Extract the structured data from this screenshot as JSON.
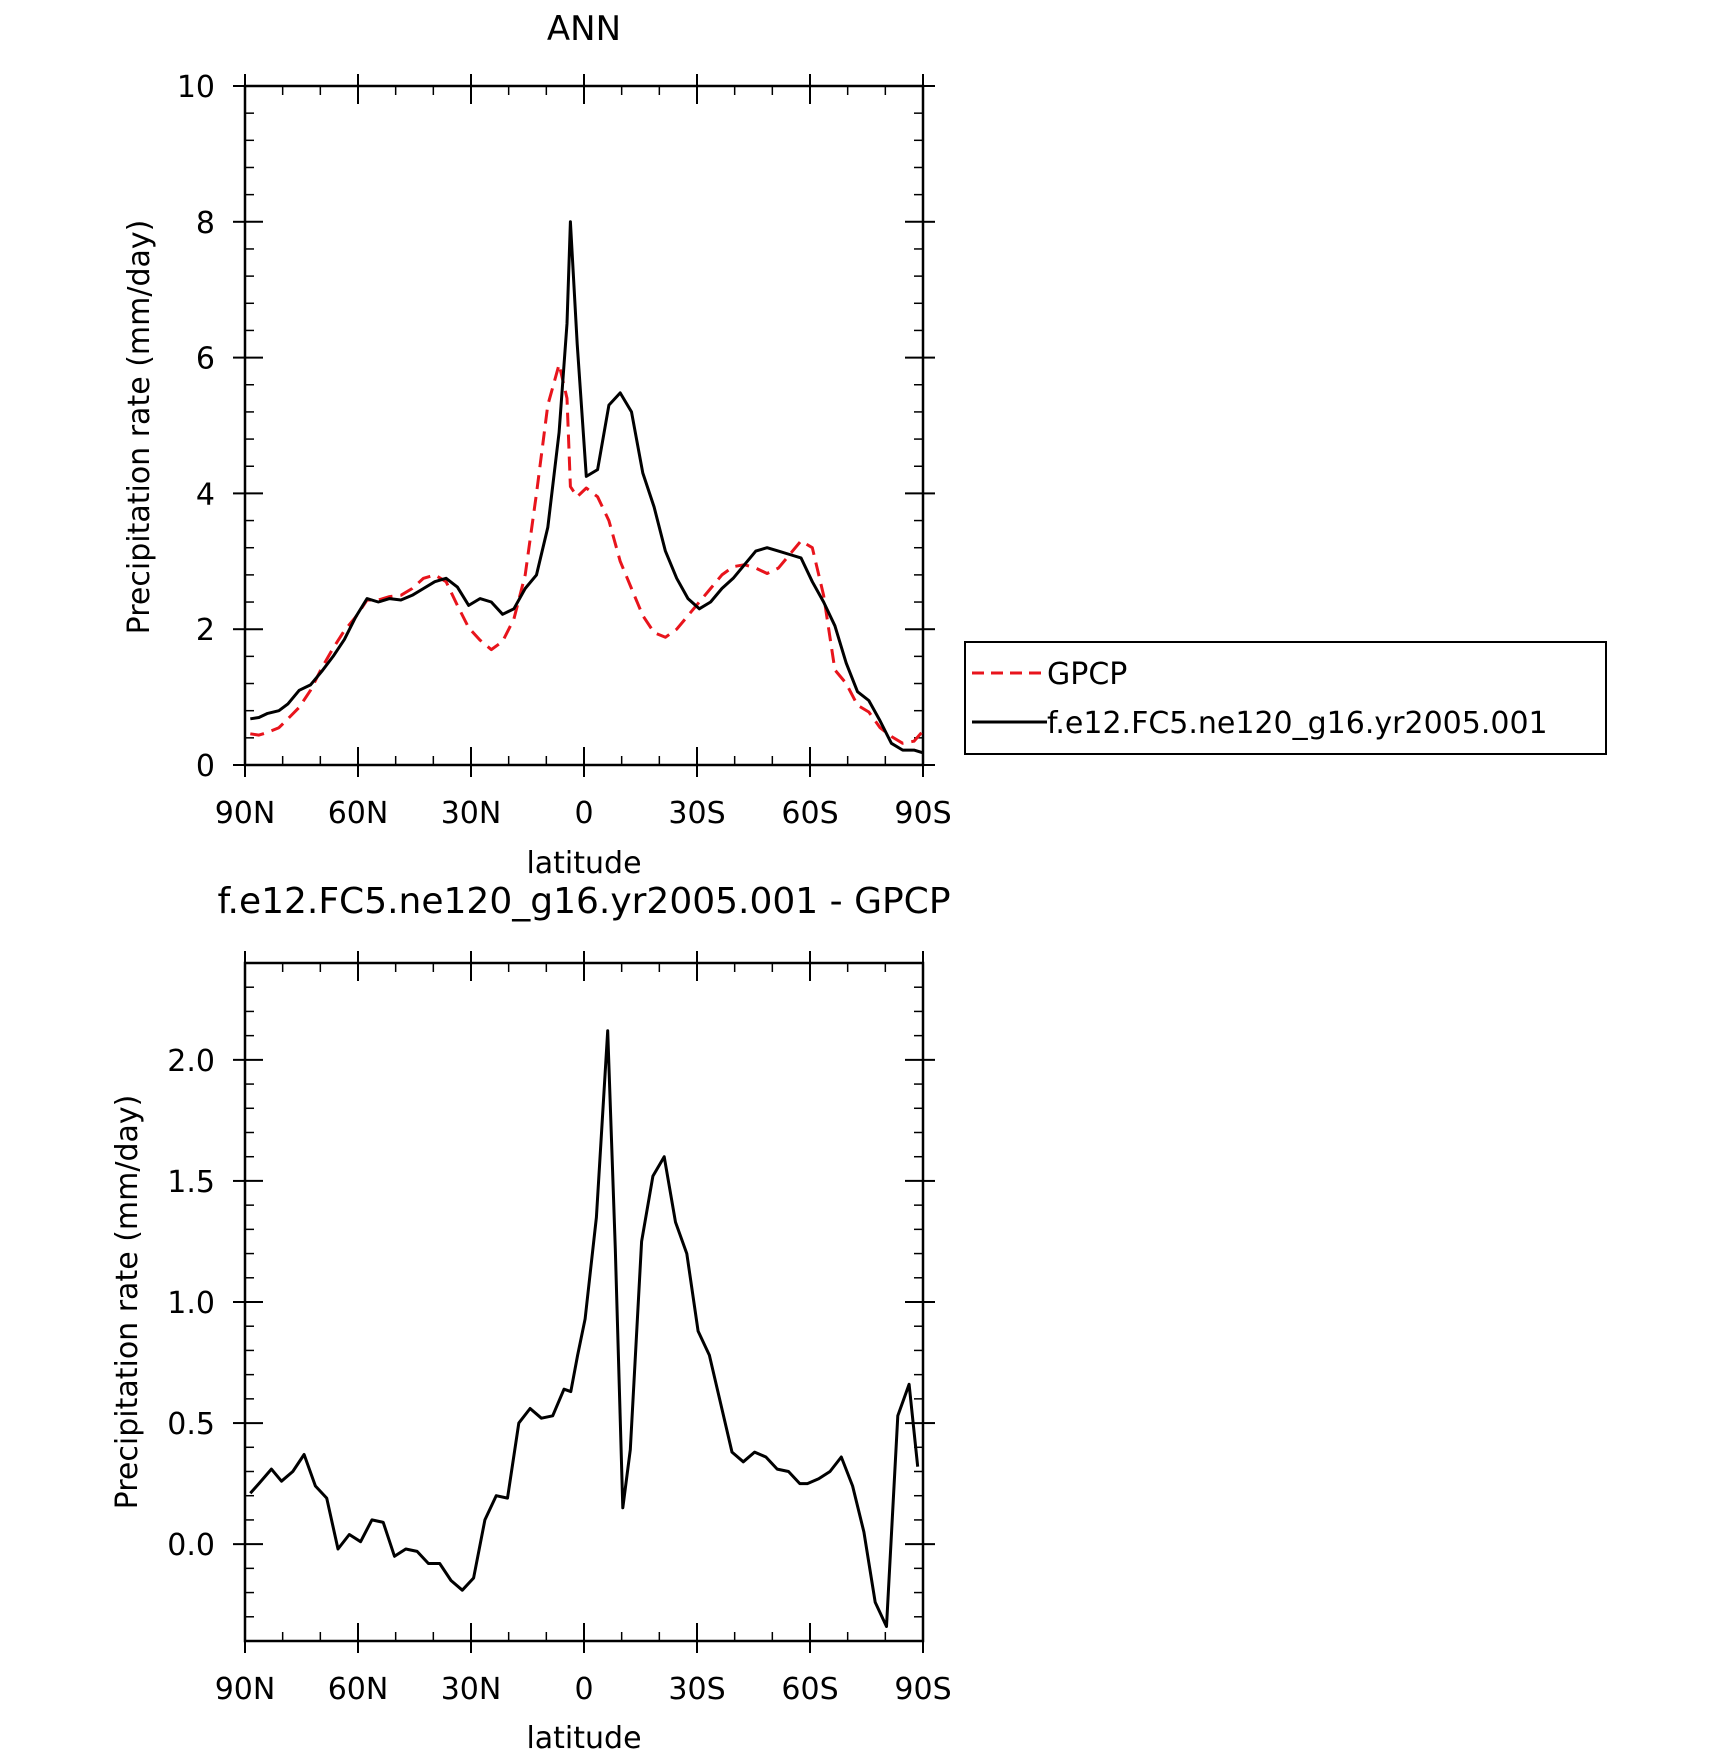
{
  "chart_data": [
    {
      "type": "line",
      "title": "ANN",
      "xlabel": "latitude",
      "ylabel": "Precipitation rate (mm/day)",
      "ylim": [
        0,
        10
      ],
      "xlim": [
        90,
        -90
      ],
      "x_ticks": [
        90,
        60,
        30,
        0,
        -30,
        -60,
        -90
      ],
      "x_tick_labels": [
        "90N",
        "60N",
        "30N",
        "0",
        "30S",
        "60S",
        "90S"
      ],
      "y_ticks": [
        0,
        2,
        4,
        6,
        8,
        10
      ],
      "y_tick_labels": [
        "0",
        "2",
        "4",
        "6",
        "8",
        "10"
      ],
      "legend_position": "right",
      "grid": false,
      "series": [
        {
          "name": "GPCP",
          "color": "#e8141c",
          "dash": "dashed",
          "x": [
            88.6,
            86.3,
            84.0,
            81.0,
            78.6,
            75.6,
            72.6,
            69.6,
            66.6,
            63.6,
            60.6,
            57.6,
            54.6,
            51.6,
            48.6,
            45.6,
            42.6,
            39.6,
            36.6,
            33.6,
            30.6,
            27.6,
            24.6,
            21.6,
            18.6,
            15.6,
            12.6,
            9.6,
            6.6,
            4.5,
            3.6,
            1.8,
            -0.6,
            -3.6,
            -6.6,
            -9.6,
            -12.6,
            -15.6,
            -18.6,
            -21.6,
            -24.6,
            -27.6,
            -30.6,
            -33.6,
            -36.6,
            -39.6,
            -42.6,
            -45.6,
            -48.6,
            -51.6,
            -54.6,
            -57.6,
            -60.6,
            -63.6,
            -66.6,
            -69.6,
            -72.6,
            -75.6,
            -78.6,
            -81.6,
            -84.6,
            -87.6,
            -90.0
          ],
          "y": [
            0.46,
            0.44,
            0.48,
            0.55,
            0.68,
            0.85,
            1.1,
            1.43,
            1.72,
            1.98,
            2.18,
            2.43,
            2.43,
            2.48,
            2.5,
            2.6,
            2.75,
            2.8,
            2.7,
            2.35,
            2.02,
            1.84,
            1.7,
            1.82,
            2.15,
            2.8,
            4.0,
            5.3,
            5.9,
            5.4,
            4.1,
            3.95,
            4.08,
            3.95,
            3.6,
            3.0,
            2.6,
            2.2,
            1.95,
            1.88,
            2.0,
            2.2,
            2.4,
            2.6,
            2.8,
            2.92,
            2.95,
            2.9,
            2.82,
            2.9,
            3.1,
            3.3,
            3.2,
            2.5,
            1.4,
            1.2,
            0.88,
            0.78,
            0.55,
            0.42,
            0.32,
            0.35,
            0.5
          ]
        },
        {
          "name": "f.e12.FC5.ne120_g16.yr2005.001",
          "color": "#000000",
          "dash": "solid",
          "x": [
            88.6,
            86.3,
            84.0,
            81.0,
            78.6,
            75.6,
            72.6,
            69.6,
            66.6,
            63.6,
            60.6,
            57.6,
            54.6,
            51.6,
            48.6,
            45.6,
            42.6,
            39.6,
            36.6,
            33.6,
            30.6,
            27.6,
            24.6,
            21.6,
            18.6,
            15.6,
            12.6,
            9.6,
            6.6,
            4.5,
            3.6,
            1.8,
            -0.6,
            -3.6,
            -6.6,
            -9.6,
            -12.6,
            -15.6,
            -18.6,
            -21.6,
            -24.6,
            -27.6,
            -30.6,
            -33.6,
            -36.6,
            -39.6,
            -42.6,
            -45.6,
            -48.6,
            -51.6,
            -54.6,
            -57.6,
            -60.6,
            -63.6,
            -66.6,
            -69.6,
            -72.6,
            -75.6,
            -78.6,
            -81.6,
            -84.6,
            -87.6,
            -90.0
          ],
          "y": [
            0.68,
            0.7,
            0.76,
            0.8,
            0.9,
            1.1,
            1.18,
            1.38,
            1.6,
            1.85,
            2.18,
            2.45,
            2.4,
            2.45,
            2.43,
            2.5,
            2.6,
            2.7,
            2.75,
            2.62,
            2.35,
            2.45,
            2.4,
            2.22,
            2.3,
            2.6,
            2.8,
            3.5,
            4.9,
            6.5,
            8.0,
            6.2,
            4.25,
            4.35,
            5.3,
            5.48,
            5.2,
            4.3,
            3.8,
            3.15,
            2.75,
            2.45,
            2.3,
            2.4,
            2.6,
            2.75,
            2.95,
            3.15,
            3.2,
            3.15,
            3.1,
            3.05,
            2.7,
            2.4,
            2.05,
            1.5,
            1.08,
            0.95,
            0.65,
            0.32,
            0.22,
            0.22,
            0.18
          ]
        }
      ]
    },
    {
      "type": "line",
      "title": "f.e12.FC5.ne120_g16.yr2005.001 - GPCP",
      "xlabel": "latitude",
      "ylabel": "Precipitation rate (mm/day)",
      "ylim": [
        -0.4,
        2.4
      ],
      "xlim": [
        90,
        -90
      ],
      "x_ticks": [
        90,
        60,
        30,
        0,
        -30,
        -60,
        -90
      ],
      "x_tick_labels": [
        "90N",
        "60N",
        "30N",
        "0",
        "30S",
        "60S",
        "90S"
      ],
      "y_ticks": [
        0.0,
        0.5,
        1.0,
        1.5,
        2.0
      ],
      "y_tick_labels": [
        "0.0",
        "0.5",
        "1.0",
        "1.5",
        "2.0"
      ],
      "grid": false,
      "series": [
        {
          "color": "#000000",
          "dash": "solid",
          "x": [
            88.6,
            86.3,
            83.0,
            80.3,
            77.3,
            74.3,
            71.3,
            68.3,
            65.3,
            62.3,
            59.3,
            56.3,
            53.3,
            50.3,
            47.3,
            44.3,
            41.3,
            38.3,
            35.3,
            32.3,
            29.3,
            26.3,
            23.3,
            20.3,
            17.3,
            14.3,
            11.3,
            8.3,
            5.3,
            3.5,
            1.7,
            -0.3,
            -3.3,
            -6.3,
            -8.3,
            -10.3,
            -12.3,
            -15.3,
            -18.3,
            -21.3,
            -24.3,
            -27.3,
            -30.3,
            -33.3,
            -36.3,
            -39.3,
            -42.3,
            -45.3,
            -48.3,
            -51.3,
            -54.3,
            -57.3,
            -59.3,
            -62.3,
            -65.3,
            -68.3,
            -71.3,
            -74.3,
            -77.3,
            -80.3,
            -83.3,
            -86.3,
            -88.6
          ],
          "y": [
            0.21,
            0.25,
            0.31,
            0.26,
            0.3,
            0.37,
            0.24,
            0.19,
            -0.02,
            0.04,
            0.01,
            0.1,
            0.09,
            -0.05,
            -0.02,
            -0.03,
            -0.08,
            -0.08,
            -0.15,
            -0.19,
            -0.14,
            0.1,
            0.2,
            0.19,
            0.5,
            0.56,
            0.52,
            0.53,
            0.64,
            0.63,
            0.78,
            0.93,
            1.35,
            2.12,
            1.22,
            0.15,
            0.39,
            1.25,
            1.52,
            1.6,
            1.33,
            1.2,
            0.88,
            0.78,
            0.58,
            0.38,
            0.34,
            0.38,
            0.36,
            0.31,
            0.3,
            0.25,
            0.25,
            0.27,
            0.3,
            0.36,
            0.24,
            0.05,
            -0.24,
            -0.34,
            0.53,
            0.66,
            0.32
          ]
        }
      ]
    }
  ]
}
